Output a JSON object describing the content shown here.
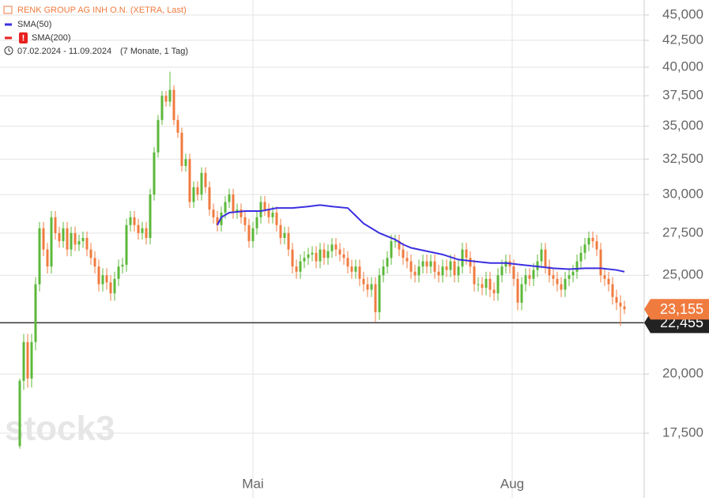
{
  "chart_data": {
    "type": "candlestick",
    "title": "RENK GROUP AG INH O.N. (XETRA, Last)",
    "date_range": "07.02.2024 - 11.09.2024",
    "duration": "(7 Monate, 1 Tag)",
    "watermark": "stock3",
    "log_scale": true,
    "grid": true,
    "up_color": "#5cb83a",
    "down_color": "#f07b3f",
    "xlim": [
      -5,
      158
    ],
    "xticks": [
      {
        "value": 59,
        "label": "Mai"
      },
      {
        "value": 124.6,
        "label": "Aug"
      }
    ],
    "ylim": [
      15950,
      46550
    ],
    "yticks": [
      {
        "value": 17500,
        "label": "17,500"
      },
      {
        "value": 20000,
        "label": "20,000"
      },
      {
        "value": 22500,
        "label": "22,500"
      },
      {
        "value": 25000,
        "label": "25,000"
      },
      {
        "value": 27500,
        "label": "27,500"
      },
      {
        "value": 30000,
        "label": "30,000"
      },
      {
        "value": 32500,
        "label": "32,500"
      },
      {
        "value": 35000,
        "label": "35,000"
      },
      {
        "value": 37500,
        "label": "37,500"
      },
      {
        "value": 40000,
        "label": "40,000"
      },
      {
        "value": 42500,
        "label": "42,500"
      },
      {
        "value": 45000,
        "label": "45,000"
      }
    ],
    "hline": {
      "value": 22455,
      "label": "22,455",
      "color": "#222222"
    },
    "last_label": "23,155",
    "last_color": "#f07b3f",
    "open": [
      17000,
      19700,
      21500,
      19800,
      21500,
      24500,
      27800,
      26500,
      25500,
      28500,
      27500,
      27000,
      27800,
      26500,
      27500,
      26800,
      27000,
      27200,
      26500,
      26000,
      25500,
      24500,
      25000,
      24600,
      24000,
      24800,
      25500,
      25600,
      28000,
      28500,
      28000,
      27500,
      27800,
      27200,
      30000,
      33000,
      35500,
      37500,
      37000,
      38000,
      35500,
      34500,
      32000,
      32500,
      29500,
      30500,
      30000,
      31500,
      30500,
      29000,
      28500,
      28000,
      28800,
      29500,
      30000,
      28800,
      29000,
      28500,
      28000,
      27000,
      27800,
      28500,
      29500,
      29000,
      28500,
      28800,
      28000,
      27200,
      27500,
      26500,
      25500,
      25200,
      25800,
      26000,
      26200,
      26300,
      25800,
      26500,
      26000,
      26400,
      26800,
      26500,
      26200,
      26000,
      25500,
      25200,
      25500,
      24800,
      24500,
      24200,
      24500,
      23000,
      25000,
      25500,
      26000,
      27000,
      27000,
      26500,
      26000,
      25800,
      25200,
      25000,
      25500,
      25800,
      25500,
      25800,
      25200,
      25000,
      25500,
      25300,
      25800,
      25000,
      25500,
      26500,
      26000,
      25500,
      24500,
      24500,
      24300,
      24800,
      24200,
      24000,
      25000,
      25500,
      25800,
      25500,
      24800,
      23500,
      24500,
      25000,
      24800,
      25300,
      25800,
      26500,
      25500,
      25000,
      24800,
      24500,
      24200,
      24800,
      25000,
      25200,
      25800,
      26300,
      26800,
      27200,
      27000,
      26500,
      25000,
      24800,
      24500,
      23800,
      23500,
      23300
    ],
    "high": [
      19800,
      21900,
      21900,
      21900,
      24900,
      28200,
      28200,
      26900,
      28900,
      28900,
      27900,
      28200,
      28200,
      27900,
      27900,
      27400,
      27600,
      27600,
      26900,
      26400,
      25900,
      25400,
      25400,
      25000,
      25200,
      25900,
      26000,
      28400,
      28900,
      28900,
      28400,
      28200,
      28200,
      30400,
      33400,
      35900,
      37900,
      37900,
      39600,
      38400,
      35900,
      34900,
      32900,
      32900,
      30900,
      30900,
      31900,
      31900,
      30900,
      29400,
      28900,
      29200,
      29900,
      30400,
      30400,
      29400,
      29400,
      28900,
      28400,
      28200,
      28900,
      29900,
      29900,
      29400,
      29200,
      29200,
      28400,
      27900,
      27900,
      26900,
      25900,
      26200,
      26400,
      26600,
      26700,
      26700,
      26900,
      26900,
      26800,
      27200,
      27200,
      26900,
      26600,
      26400,
      25900,
      25900,
      25900,
      25200,
      24900,
      24900,
      24900,
      25400,
      25900,
      26400,
      27400,
      27400,
      27400,
      26900,
      26400,
      26200,
      25600,
      25900,
      26200,
      26200,
      26200,
      26200,
      25600,
      25900,
      25900,
      26200,
      26200,
      25900,
      26900,
      26900,
      26400,
      25900,
      24900,
      24900,
      25200,
      25200,
      24600,
      25400,
      25900,
      26200,
      26200,
      25900,
      25200,
      24900,
      25400,
      25400,
      25700,
      26200,
      26900,
      26900,
      25900,
      25400,
      25200,
      24900,
      25200,
      25400,
      25600,
      26200,
      26700,
      27200,
      27600,
      27600,
      27400,
      26900,
      25400,
      25200,
      24900,
      24200,
      23900,
      23600
    ],
    "low": [
      16900,
      19300,
      19400,
      19400,
      21100,
      24100,
      26100,
      25100,
      25100,
      27100,
      26600,
      26600,
      26100,
      26100,
      26400,
      26400,
      26600,
      26100,
      25600,
      25100,
      24100,
      24100,
      24200,
      23600,
      23600,
      24400,
      25100,
      25200,
      27600,
      27600,
      27100,
      27100,
      26800,
      26800,
      29600,
      32600,
      35100,
      36600,
      36600,
      35100,
      34100,
      31600,
      31600,
      29100,
      29100,
      29600,
      29600,
      30100,
      28600,
      28100,
      27600,
      27600,
      28400,
      29100,
      28400,
      28400,
      28100,
      27600,
      26600,
      26600,
      27400,
      28100,
      28600,
      28100,
      28100,
      27600,
      26800,
      26800,
      26100,
      25100,
      24800,
      24800,
      25400,
      25600,
      25800,
      25400,
      25400,
      25600,
      25600,
      26000,
      26100,
      25800,
      25600,
      25100,
      24800,
      24800,
      24400,
      24100,
      23800,
      23800,
      22500,
      22600,
      24600,
      25100,
      25600,
      26600,
      26100,
      25600,
      25400,
      24800,
      24600,
      24600,
      25100,
      25100,
      25100,
      24800,
      24600,
      24600,
      24900,
      24900,
      24600,
      24600,
      25100,
      25600,
      25100,
      24100,
      24100,
      23900,
      23900,
      23800,
      23600,
      23600,
      24600,
      25100,
      25100,
      24400,
      23100,
      23100,
      24100,
      24400,
      24400,
      24900,
      25400,
      25100,
      24600,
      24400,
      24100,
      23800,
      23800,
      24400,
      24600,
      24800,
      25400,
      25900,
      26400,
      26600,
      26100,
      24600,
      24400,
      24100,
      23400,
      23100,
      22300,
      22900
    ],
    "close": [
      19700,
      21500,
      19800,
      21500,
      24500,
      27800,
      26500,
      25500,
      28500,
      27500,
      27000,
      27800,
      26500,
      27500,
      26800,
      27000,
      27200,
      26500,
      26000,
      25500,
      24500,
      25000,
      24600,
      24000,
      24800,
      25500,
      25600,
      28000,
      28500,
      28000,
      27500,
      27800,
      27200,
      30000,
      33000,
      35500,
      37500,
      37000,
      38000,
      35500,
      34500,
      32000,
      32500,
      29500,
      30500,
      30000,
      31500,
      30500,
      29000,
      28500,
      28000,
      28800,
      29500,
      30000,
      28800,
      29000,
      28500,
      28000,
      27000,
      27800,
      28500,
      29500,
      29000,
      28500,
      28800,
      28000,
      27200,
      27500,
      26500,
      25500,
      25200,
      25800,
      26000,
      26200,
      26300,
      25800,
      26500,
      26000,
      26400,
      26800,
      26500,
      26200,
      26000,
      25500,
      25200,
      25500,
      24800,
      24500,
      24200,
      24500,
      23000,
      25000,
      25500,
      26000,
      27000,
      27000,
      26500,
      26000,
      25800,
      25200,
      25000,
      25500,
      25800,
      25500,
      25800,
      25200,
      25000,
      25500,
      25300,
      25800,
      25000,
      25500,
      26500,
      26000,
      25500,
      24500,
      24500,
      24300,
      24800,
      24200,
      24000,
      25000,
      25500,
      25800,
      25500,
      24800,
      23500,
      24500,
      25000,
      24800,
      25300,
      25800,
      26500,
      25500,
      25000,
      24800,
      24500,
      24200,
      24800,
      25000,
      25200,
      25800,
      26300,
      26800,
      27200,
      27000,
      26500,
      25000,
      24800,
      24500,
      23800,
      23500,
      23300,
      23155
    ],
    "series": [
      {
        "name": "SMA(50)",
        "color": "#3b2fe0",
        "x": [
          50,
          51,
          53,
          57,
          61,
          65,
          69,
          73,
          76,
          79,
          83,
          85,
          87,
          89,
          91,
          93,
          95,
          97,
          99,
          103,
          107,
          111,
          115,
          119,
          123,
          127,
          131,
          135,
          139,
          143,
          147,
          151,
          153
        ],
        "values": [
          28000,
          28500,
          28800,
          28900,
          28900,
          29100,
          29100,
          29200,
          29300,
          29200,
          29100,
          28600,
          28100,
          27800,
          27500,
          27300,
          27100,
          26800,
          26600,
          26400,
          26200,
          25900,
          25800,
          25700,
          25700,
          25600,
          25500,
          25400,
          25350,
          25400,
          25400,
          25300,
          25200
        ]
      },
      {
        "name": "SMA(200)",
        "color": "#e82020",
        "x": [],
        "values": []
      }
    ]
  }
}
